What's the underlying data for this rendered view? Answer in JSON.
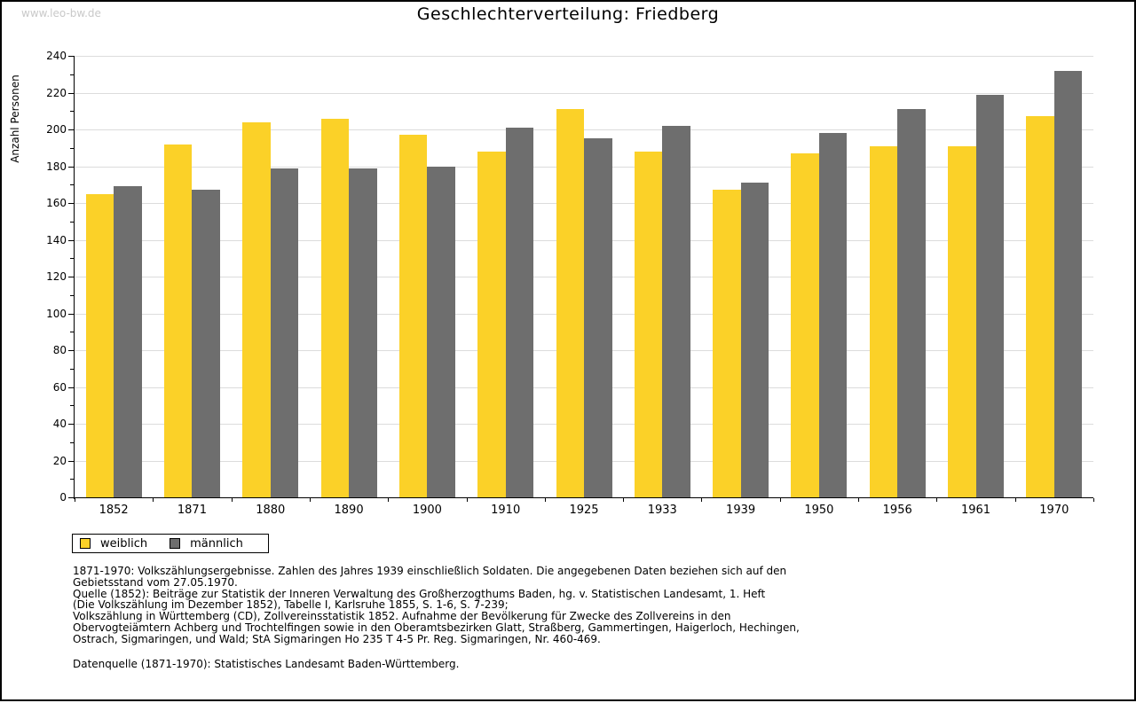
{
  "watermark": "www.leo-bw.de",
  "chart_data": {
    "type": "bar",
    "title": "Geschlechterverteilung: Friedberg",
    "xlabel": "",
    "ylabel": "Anzahl Personen",
    "categories": [
      "1852",
      "1871",
      "1880",
      "1890",
      "1900",
      "1910",
      "1925",
      "1933",
      "1939",
      "1950",
      "1956",
      "1961",
      "1970"
    ],
    "series": [
      {
        "name": "weiblich",
        "color": "#FBD128",
        "values": [
          165,
          192,
          204,
          206,
          197,
          188,
          211,
          188,
          167,
          187,
          191,
          191,
          207
        ]
      },
      {
        "name": "männlich",
        "color": "#6E6E6E",
        "values": [
          169,
          167,
          179,
          179,
          180,
          201,
          195,
          202,
          171,
          198,
          211,
          219,
          232
        ]
      }
    ],
    "ylim": [
      0,
      240
    ],
    "ytick_step": 20,
    "yminor_step": 10,
    "grid": true,
    "grid_color": "#dcdcdc",
    "legend_position": "bottom-left"
  },
  "footer": {
    "lines": [
      "1871-1970: Volkszählungsergebnisse. Zahlen des Jahres 1939 einschließlich Soldaten. Die angegebenen Daten beziehen sich auf den",
      "Gebietsstand vom 27.05.1970.",
      "Quelle (1852): Beiträge zur Statistik der Inneren Verwaltung des Großherzogthums Baden, hg. v. Statistischen Landesamt, 1. Heft",
      "(Die Volkszählung im Dezember 1852), Tabelle I, Karlsruhe 1855, S. 1-6, S. 7-239;",
      "Volkszählung in Württemberg (CD), Zollvereinsstatistik 1852. Aufnahme der Bevölkerung für Zwecke des Zollvereins in den",
      "Obervogteiämtern Achberg und Trochtelfingen sowie in den Oberamtsbezirken Glatt, Straßberg, Gammertingen, Haigerloch, Hechingen,",
      "Ostrach, Sigmaringen, und Wald; StA Sigmaringen Ho 235 T 4-5 Pr. Reg. Sigmaringen, Nr. 460-469."
    ],
    "datasource": "Datenquelle (1871-1970): Statistisches Landesamt Baden-Württemberg."
  }
}
